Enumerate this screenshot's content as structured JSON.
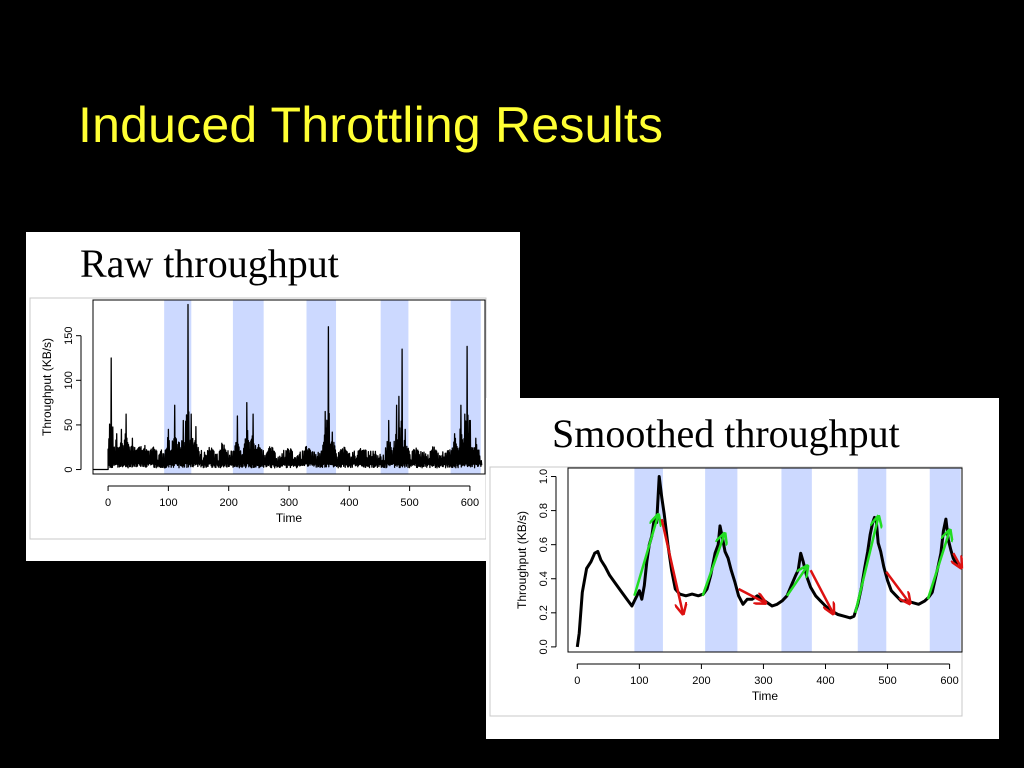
{
  "slide": {
    "title": "Induced Throttling Results"
  },
  "colors": {
    "background": "#000000",
    "title": "#ffff33",
    "shade": "#ccd9ff",
    "series": "#000000",
    "rise_arrow": "#22dd22",
    "fall_arrow": "#dd1111"
  },
  "chart_data": [
    {
      "id": "raw",
      "type": "line",
      "title": "Raw throughput",
      "xlabel": "Time",
      "ylabel": "Throughput (KB/s)",
      "xlim": [
        -25,
        625
      ],
      "ylim": [
        -5,
        190
      ],
      "xticks": [
        0,
        100,
        200,
        300,
        400,
        500,
        600
      ],
      "xtick_labels": [
        "0",
        "100",
        "200",
        "300",
        "400",
        "500",
        "600"
      ],
      "yticks": [
        0,
        50,
        100,
        150
      ],
      "ytick_labels": [
        "0",
        "50",
        "100",
        "150"
      ],
      "shaded_intervals": [
        [
          93,
          138
        ],
        [
          207,
          258
        ],
        [
          329,
          378
        ],
        [
          452,
          498
        ],
        [
          568,
          618
        ]
      ],
      "spikes": [
        [
          5,
          125
        ],
        [
          14,
          40
        ],
        [
          22,
          45
        ],
        [
          30,
          62
        ],
        [
          40,
          35
        ],
        [
          52,
          25
        ],
        [
          62,
          20
        ],
        [
          75,
          25
        ],
        [
          100,
          45
        ],
        [
          110,
          72
        ],
        [
          118,
          30
        ],
        [
          125,
          55
        ],
        [
          132,
          185
        ],
        [
          138,
          62
        ],
        [
          145,
          48
        ],
        [
          170,
          20
        ],
        [
          190,
          28
        ],
        [
          215,
          60
        ],
        [
          230,
          75
        ],
        [
          240,
          62
        ],
        [
          250,
          28
        ],
        [
          270,
          20
        ],
        [
          300,
          18
        ],
        [
          330,
          22
        ],
        [
          360,
          65
        ],
        [
          365,
          160
        ],
        [
          372,
          42
        ],
        [
          390,
          18
        ],
        [
          420,
          15
        ],
        [
          465,
          55
        ],
        [
          478,
          72
        ],
        [
          482,
          82
        ],
        [
          488,
          135
        ],
        [
          493,
          45
        ],
        [
          510,
          12
        ],
        [
          540,
          18
        ],
        [
          575,
          40
        ],
        [
          585,
          72
        ],
        [
          592,
          62
        ],
        [
          595,
          138
        ],
        [
          600,
          55
        ],
        [
          610,
          35
        ]
      ]
    },
    {
      "id": "smoothed",
      "type": "line",
      "title": "Smoothed throughput",
      "xlabel": "Time",
      "ylabel": "Throughput (KB/s)",
      "xlim": [
        -15,
        620
      ],
      "ylim": [
        -0.03,
        1.05
      ],
      "xticks": [
        0,
        100,
        200,
        300,
        400,
        500,
        600
      ],
      "xtick_labels": [
        "0",
        "100",
        "200",
        "300",
        "400",
        "500",
        "600"
      ],
      "yticks": [
        0.0,
        0.2,
        0.4,
        0.6,
        0.8,
        1.0
      ],
      "ytick_labels": [
        "0.0",
        "0.2",
        "0.4",
        "0.6",
        "0.8",
        "1.0"
      ],
      "shaded_intervals": [
        [
          92,
          138
        ],
        [
          206,
          258
        ],
        [
          329,
          378
        ],
        [
          452,
          498
        ],
        [
          568,
          618
        ]
      ],
      "series": [
        {
          "name": "smoothed",
          "points": [
            [
              0,
              0.0
            ],
            [
              3,
              0.08
            ],
            [
              8,
              0.32
            ],
            [
              15,
              0.46
            ],
            [
              22,
              0.5
            ],
            [
              28,
              0.55
            ],
            [
              33,
              0.56
            ],
            [
              38,
              0.51
            ],
            [
              45,
              0.47
            ],
            [
              52,
              0.42
            ],
            [
              60,
              0.38
            ],
            [
              70,
              0.33
            ],
            [
              80,
              0.28
            ],
            [
              88,
              0.24
            ],
            [
              92,
              0.27
            ],
            [
              96,
              0.3
            ],
            [
              100,
              0.33
            ],
            [
              104,
              0.28
            ],
            [
              108,
              0.36
            ],
            [
              112,
              0.5
            ],
            [
              116,
              0.6
            ],
            [
              120,
              0.65
            ],
            [
              124,
              0.75
            ],
            [
              128,
              0.73
            ],
            [
              132,
              1.0
            ],
            [
              136,
              0.88
            ],
            [
              140,
              0.78
            ],
            [
              146,
              0.6
            ],
            [
              152,
              0.45
            ],
            [
              158,
              0.34
            ],
            [
              165,
              0.31
            ],
            [
              175,
              0.3
            ],
            [
              185,
              0.31
            ],
            [
              195,
              0.3
            ],
            [
              203,
              0.31
            ],
            [
              209,
              0.34
            ],
            [
              215,
              0.42
            ],
            [
              222,
              0.55
            ],
            [
              227,
              0.6
            ],
            [
              230,
              0.71
            ],
            [
              234,
              0.64
            ],
            [
              238,
              0.56
            ],
            [
              243,
              0.52
            ],
            [
              248,
              0.45
            ],
            [
              254,
              0.38
            ],
            [
              260,
              0.3
            ],
            [
              267,
              0.25
            ],
            [
              274,
              0.28
            ],
            [
              282,
              0.28
            ],
            [
              290,
              0.3
            ],
            [
              298,
              0.28
            ],
            [
              306,
              0.26
            ],
            [
              314,
              0.24
            ],
            [
              322,
              0.25
            ],
            [
              330,
              0.27
            ],
            [
              338,
              0.3
            ],
            [
              346,
              0.37
            ],
            [
              352,
              0.42
            ],
            [
              356,
              0.45
            ],
            [
              360,
              0.55
            ],
            [
              364,
              0.5
            ],
            [
              370,
              0.41
            ],
            [
              376,
              0.35
            ],
            [
              384,
              0.3
            ],
            [
              392,
              0.27
            ],
            [
              400,
              0.24
            ],
            [
              410,
              0.21
            ],
            [
              420,
              0.19
            ],
            [
              430,
              0.18
            ],
            [
              440,
              0.17
            ],
            [
              446,
              0.18
            ],
            [
              452,
              0.25
            ],
            [
              458,
              0.35
            ],
            [
              463,
              0.46
            ],
            [
              468,
              0.56
            ],
            [
              472,
              0.66
            ],
            [
              476,
              0.73
            ],
            [
              479,
              0.76
            ],
            [
              482,
              0.73
            ],
            [
              485,
              0.61
            ],
            [
              489,
              0.56
            ],
            [
              494,
              0.47
            ],
            [
              500,
              0.39
            ],
            [
              506,
              0.33
            ],
            [
              514,
              0.3
            ],
            [
              522,
              0.27
            ],
            [
              530,
              0.27
            ],
            [
              540,
              0.26
            ],
            [
              550,
              0.25
            ],
            [
              560,
              0.27
            ],
            [
              566,
              0.29
            ],
            [
              572,
              0.32
            ],
            [
              577,
              0.4
            ],
            [
              582,
              0.48
            ],
            [
              586,
              0.55
            ],
            [
              590,
              0.68
            ],
            [
              594,
              0.75
            ],
            [
              598,
              0.63
            ],
            [
              602,
              0.57
            ],
            [
              606,
              0.52
            ],
            [
              612,
              0.48
            ]
          ]
        }
      ],
      "arrows": [
        {
          "kind": "rise",
          "from": [
            92,
            0.3
          ],
          "to": [
            130,
            0.77
          ]
        },
        {
          "kind": "fall",
          "from": [
            136,
            0.75
          ],
          "to": [
            170,
            0.2
          ]
        },
        {
          "kind": "rise",
          "from": [
            202,
            0.3
          ],
          "to": [
            237,
            0.66
          ]
        },
        {
          "kind": "fall",
          "from": [
            260,
            0.34
          ],
          "to": [
            302,
            0.26
          ]
        },
        {
          "kind": "rise",
          "from": [
            338,
            0.3
          ],
          "to": [
            370,
            0.47
          ]
        },
        {
          "kind": "fall",
          "from": [
            376,
            0.45
          ],
          "to": [
            412,
            0.2
          ]
        },
        {
          "kind": "rise",
          "from": [
            448,
            0.2
          ],
          "to": [
            485,
            0.76
          ]
        },
        {
          "kind": "fall",
          "from": [
            498,
            0.44
          ],
          "to": [
            535,
            0.26
          ]
        },
        {
          "kind": "rise",
          "from": [
            565,
            0.28
          ],
          "to": [
            600,
            0.68
          ]
        },
        {
          "kind": "fall",
          "from": [
            606,
            0.55
          ],
          "to": [
            618,
            0.47
          ]
        }
      ]
    }
  ]
}
